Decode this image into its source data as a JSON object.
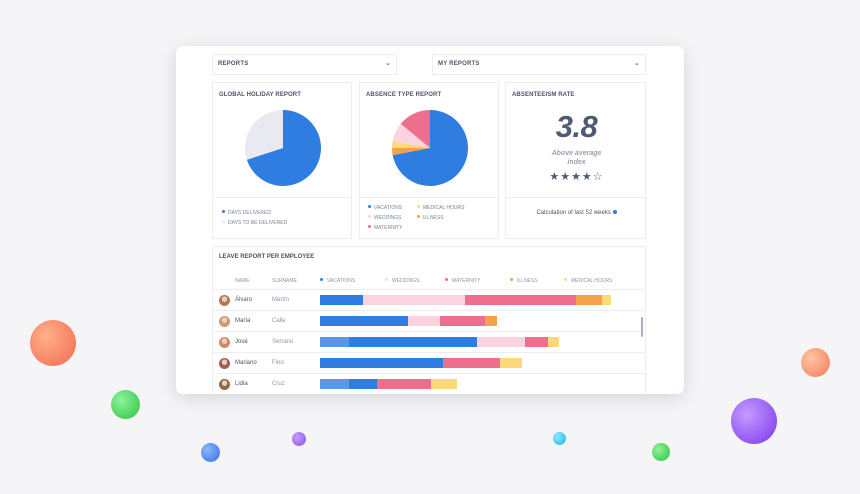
{
  "colors": {
    "vacations": "#2f7de0",
    "vacations_light": "#5a96e6",
    "weddings": "#fbd4df",
    "maternity": "#ee6e8d",
    "illness": "#f5a04a",
    "medical_hours": "#fdd97c",
    "to_be_delivered": "#e9e9f1"
  },
  "selects": {
    "reports": "REPORTS",
    "my_reports": "MY REPORTS"
  },
  "global_holiday": {
    "title": "GLOBAL HOLIDAY REPORT",
    "days_delivered_fraction": 0.7,
    "legend": [
      "DAYS DELIVERED",
      "DAYS TO BE DELIVERED"
    ]
  },
  "absence_type": {
    "title": "ABSENCE TYPE REPORT",
    "slices": [
      {
        "key": "vacations",
        "value": 72
      },
      {
        "key": "illness",
        "value": 3
      },
      {
        "key": "medical_hours",
        "value": 3
      },
      {
        "key": "weddings",
        "value": 8
      },
      {
        "key": "maternity",
        "value": 14
      }
    ],
    "legend": {
      "vacations": "VACATIONS",
      "medical_hours": "MEDICAL HOURS",
      "weddings": "WEDDINGS",
      "illness": "ILLNESS",
      "maternity": "MATERNITY"
    }
  },
  "absenteeism": {
    "title": "ABSENTEEISM RATE",
    "value": "3.8",
    "label_line1": "Above average",
    "label_line2": "index",
    "stars": "★★★★☆",
    "footer": "Calculation of last 52 weeks"
  },
  "leave_report": {
    "title": "LEAVE REPORT PER EMPLOYEE",
    "headers": {
      "name": "NAME",
      "surname": "SURNAME",
      "vacations": "VACATIONS",
      "weddings": "WEDDINGS",
      "maternity": "MATERNITY",
      "illness": "ILLNESS",
      "medical_hours": "MEDICAL HOURS"
    },
    "rows": [
      {
        "name": "Álvaro",
        "surname": "Martín",
        "avatar": "#b07a5a",
        "segments": [
          {
            "key": "vacations",
            "v": 15
          },
          {
            "key": "weddings",
            "v": 36
          },
          {
            "key": "maternity",
            "v": 39
          },
          {
            "key": "illness",
            "v": 9
          },
          {
            "key": "medical_hours",
            "v": 3
          }
        ]
      },
      {
        "name": "María",
        "surname": "Calle",
        "avatar": "#c89a78",
        "segments": [
          {
            "key": "vacations",
            "v": 31
          },
          {
            "key": "weddings",
            "v": 11
          },
          {
            "key": "maternity",
            "v": 16
          },
          {
            "key": "illness",
            "v": 4
          }
        ]
      },
      {
        "name": "José",
        "surname": "Serrano",
        "avatar": "#d08a6a",
        "segments": [
          {
            "key": "vacations_light",
            "v": 10
          },
          {
            "key": "vacations",
            "v": 45
          },
          {
            "key": "weddings",
            "v": 17
          },
          {
            "key": "maternity",
            "v": 8
          },
          {
            "key": "medical_hours",
            "v": 4
          }
        ]
      },
      {
        "name": "Mariano",
        "surname": "Fino",
        "avatar": "#a0605a",
        "segments": [
          {
            "key": "vacations",
            "v": 43
          },
          {
            "key": "maternity",
            "v": 20
          },
          {
            "key": "medical_hours",
            "v": 8
          }
        ]
      },
      {
        "name": "Lidia",
        "surname": "Cruz",
        "avatar": "#8a6a4a",
        "segments": [
          {
            "key": "vacations_light",
            "v": 10
          },
          {
            "key": "vacations",
            "v": 10
          },
          {
            "key": "maternity",
            "v": 19
          },
          {
            "key": "medical_hours",
            "v": 9
          }
        ]
      }
    ]
  }
}
